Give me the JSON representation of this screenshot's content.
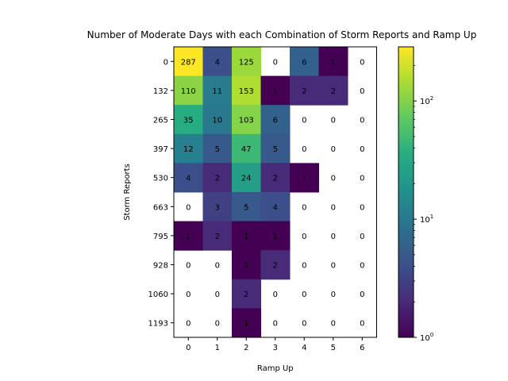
{
  "chart_data": {
    "type": "heatmap",
    "title": "Number of Moderate Days with each Combination of Storm Reports and Ramp Up",
    "xlabel": "Ramp Up",
    "ylabel": "Storm Reports",
    "x_categories": [
      "0",
      "1",
      "2",
      "3",
      "4",
      "5",
      "6"
    ],
    "y_categories": [
      "0",
      "132",
      "265",
      "397",
      "530",
      "663",
      "795",
      "928",
      "1060",
      "1193"
    ],
    "values": [
      [
        287,
        4,
        125,
        0,
        6,
        1,
        0
      ],
      [
        110,
        11,
        153,
        1,
        2,
        2,
        0
      ],
      [
        35,
        10,
        103,
        6,
        0,
        0,
        0
      ],
      [
        12,
        5,
        47,
        5,
        0,
        0,
        0
      ],
      [
        4,
        2,
        24,
        2,
        1,
        0,
        0
      ],
      [
        0,
        3,
        5,
        4,
        0,
        0,
        0
      ],
      [
        1,
        2,
        1,
        1,
        0,
        0,
        0
      ],
      [
        0,
        0,
        1,
        2,
        0,
        0,
        0
      ],
      [
        0,
        0,
        2,
        0,
        0,
        0,
        0
      ],
      [
        0,
        0,
        1,
        0,
        0,
        0,
        0
      ]
    ],
    "colorbar": {
      "scale": "log",
      "colormap": "viridis",
      "range": [
        1,
        287
      ],
      "tick_labels": [
        "10^0",
        "10^1",
        "10^2"
      ],
      "tick_values": [
        1,
        10,
        100
      ]
    },
    "zero_cells": "blank (white)",
    "grid": false
  }
}
